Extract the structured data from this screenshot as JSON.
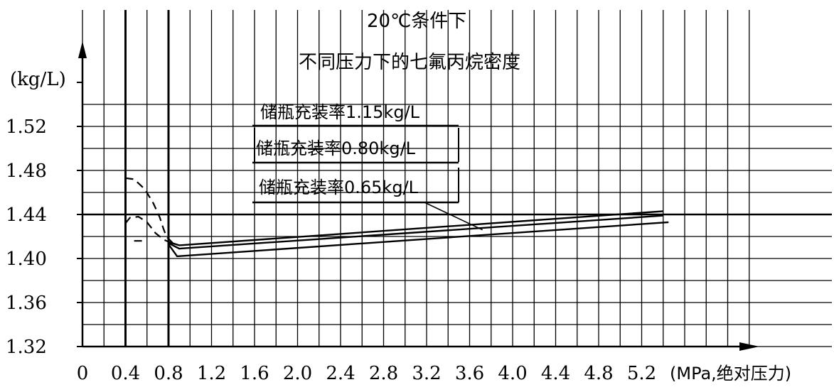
{
  "chart_data": {
    "type": "line",
    "title": "不同压力下的七氟丙烷密度",
    "subtitle": "20℃条件下",
    "ylabel": "(kg/L)",
    "xlabel": "(MPa,绝对压力)",
    "xlim": [
      0,
      5.8
    ],
    "ylim": [
      1.32,
      1.56
    ],
    "x_ticks": [
      {
        "value": 0,
        "label": "0"
      },
      {
        "value": 0.4,
        "label": "0.4"
      },
      {
        "value": 0.8,
        "label": "0.8"
      },
      {
        "value": 1.2,
        "label": "1.2"
      },
      {
        "value": 1.6,
        "label": "1.6"
      },
      {
        "value": 2.0,
        "label": "2.0"
      },
      {
        "value": 2.4,
        "label": "2.4"
      },
      {
        "value": 2.8,
        "label": "2.8"
      },
      {
        "value": 3.2,
        "label": "3.2"
      },
      {
        "value": 3.6,
        "label": "3.6"
      },
      {
        "value": 4.0,
        "label": "4.0"
      },
      {
        "value": 4.4,
        "label": "4.4"
      },
      {
        "value": 4.8,
        "label": "4.8"
      },
      {
        "value": 5.2,
        "label": "5.2"
      }
    ],
    "y_ticks": [
      {
        "value": 1.32,
        "label": "1.32"
      },
      {
        "value": 1.36,
        "label": "1.36"
      },
      {
        "value": 1.4,
        "label": "1.40"
      },
      {
        "value": 1.44,
        "label": "1.44"
      },
      {
        "value": 1.48,
        "label": "1.48"
      },
      {
        "value": 1.52,
        "label": "1.52"
      }
    ],
    "legend_labels": [
      "储瓶充装率1.15kg/L",
      "储瓶充装率0.80kg/L",
      "储瓶充装率0.65kg/L"
    ],
    "grid": true,
    "series": [
      {
        "name": "储瓶充装率1.15kg/L",
        "style": "solid",
        "points": [
          [
            0.8,
            1.415
          ],
          [
            0.9,
            1.412
          ],
          [
            5.4,
            1.443
          ]
        ]
      },
      {
        "name": "储瓶充装率0.80kg/L",
        "style": "solid",
        "points": [
          [
            0.8,
            1.414
          ],
          [
            0.9,
            1.409
          ],
          [
            5.4,
            1.439
          ]
        ]
      },
      {
        "name": "储瓶充装率0.65kg/L",
        "style": "solid",
        "points": [
          [
            0.8,
            1.413
          ],
          [
            0.88,
            1.402
          ],
          [
            5.45,
            1.433
          ]
        ]
      },
      {
        "name": "",
        "style": "dashed",
        "points": [
          [
            0.4,
            1.473
          ],
          [
            0.48,
            1.472
          ],
          [
            0.58,
            1.463
          ],
          [
            0.66,
            1.45
          ],
          [
            0.72,
            1.437
          ],
          [
            0.75,
            1.428
          ],
          [
            0.78,
            1.42
          ],
          [
            0.85,
            1.413
          ]
        ]
      },
      {
        "name": "",
        "style": "dashed",
        "points": [
          [
            0.4,
            1.432
          ],
          [
            0.44,
            1.437
          ],
          [
            0.52,
            1.438
          ],
          [
            0.6,
            1.433
          ],
          [
            0.68,
            1.423
          ],
          [
            0.76,
            1.417
          ],
          [
            0.85,
            1.413
          ]
        ]
      },
      {
        "name": "",
        "style": "dashed",
        "points": [
          [
            0.48,
            1.416
          ],
          [
            0.6,
            1.416
          ]
        ]
      }
    ],
    "leader_line": {
      "from": [
        3.18,
        1.465
      ],
      "to": [
        3.72,
        1.426
      ]
    }
  }
}
